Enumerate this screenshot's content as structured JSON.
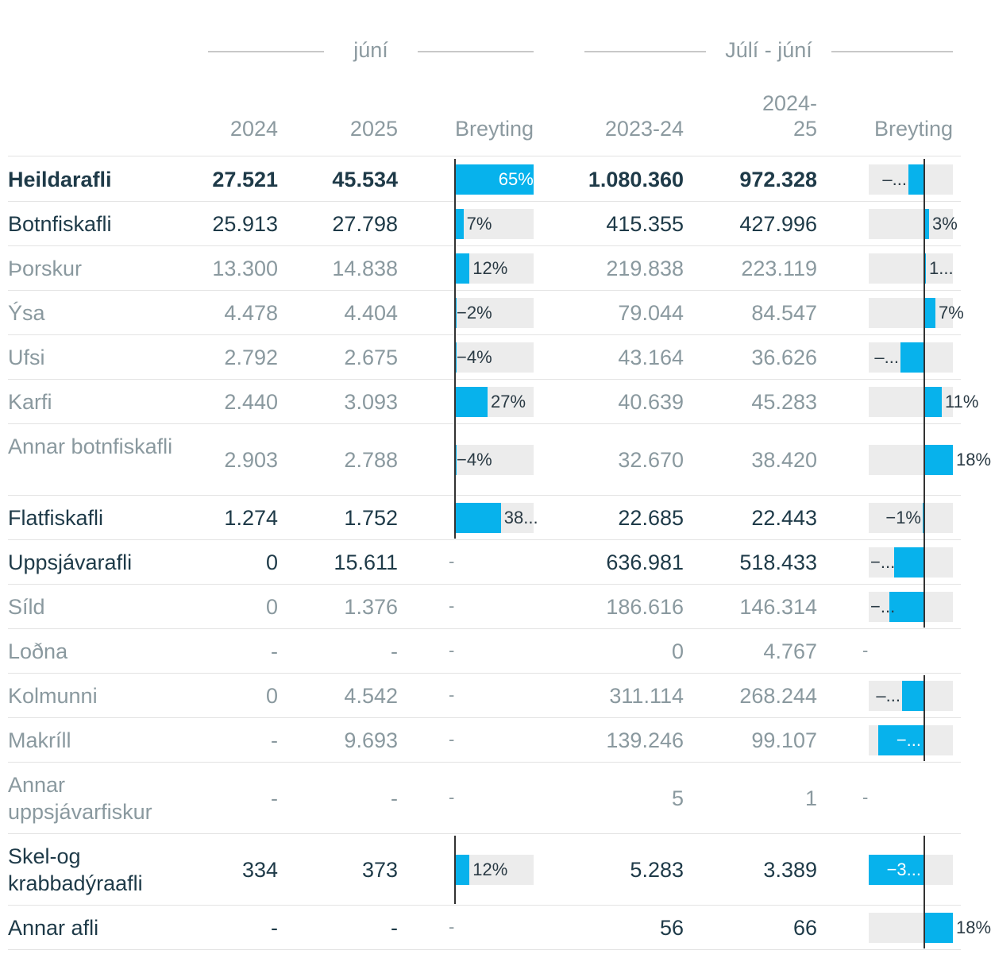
{
  "chart_data": {
    "type": "table",
    "groups": [
      {
        "label": "júní",
        "columns": [
          "2024",
          "2025",
          "Breyting"
        ]
      },
      {
        "label": "Júlí - júní",
        "columns": [
          "2023-24",
          "2024-25",
          "Breyting"
        ]
      }
    ],
    "headers": [
      "",
      "2024",
      "2025",
      "Breyting",
      "2023-24",
      "2024-25",
      "Breyting"
    ],
    "rows": [
      {
        "name": "Heildarafli",
        "level": 0,
        "jun2024": "27.521",
        "jun2025": "45.534",
        "jun_change": 65,
        "jun_label": "65%",
        "yr2324": "1.080.360",
        "yr2425": "972.328",
        "yr_change": -10,
        "yr_label": "–..."
      },
      {
        "name": "Botnfiskafli",
        "level": 1,
        "jun2024": "25.913",
        "jun2025": "27.798",
        "jun_change": 7,
        "jun_label": "7%",
        "yr2324": "415.355",
        "yr2425": "427.996",
        "yr_change": 3,
        "yr_label": "3%"
      },
      {
        "name": "Þorskur",
        "level": 2,
        "jun2024": "13.300",
        "jun2025": "14.838",
        "jun_change": 12,
        "jun_label": "12%",
        "yr2324": "219.838",
        "yr2425": "223.119",
        "yr_change": 1,
        "yr_label": "1..."
      },
      {
        "name": "Ýsa",
        "level": 2,
        "jun2024": "4.478",
        "jun2025": "4.404",
        "jun_change": -2,
        "jun_label": "−2%",
        "yr2324": "79.044",
        "yr2425": "84.547",
        "yr_change": 7,
        "yr_label": "7%"
      },
      {
        "name": "Ufsi",
        "level": 2,
        "jun2024": "2.792",
        "jun2025": "2.675",
        "jun_change": -4,
        "jun_label": "−4%",
        "yr2324": "43.164",
        "yr2425": "36.626",
        "yr_change": -15,
        "yr_label": "–..."
      },
      {
        "name": "Karfi",
        "level": 2,
        "jun2024": "2.440",
        "jun2025": "3.093",
        "jun_change": 27,
        "jun_label": "27%",
        "yr2324": "40.639",
        "yr2425": "45.283",
        "yr_change": 11,
        "yr_label": "11%"
      },
      {
        "name": "Annar botnfiskafli",
        "level": 2,
        "jun2024": "2.903",
        "jun2025": "2.788",
        "jun_change": -4,
        "jun_label": "−4%",
        "yr2324": "32.670",
        "yr2425": "38.420",
        "yr_change": 18,
        "yr_label": "18%"
      },
      {
        "name": "Flatfiskafli",
        "level": 1,
        "jun2024": "1.274",
        "jun2025": "1.752",
        "jun_change": 38,
        "jun_label": "38...",
        "yr2324": "22.685",
        "yr2425": "22.443",
        "yr_change": -1,
        "yr_label": "−1%"
      },
      {
        "name": "Uppsjávarafli",
        "level": 1,
        "jun2024": "0",
        "jun2025": "15.611",
        "jun_change": null,
        "jun_label": "-",
        "yr2324": "636.981",
        "yr2425": "518.433",
        "yr_change": -19,
        "yr_label": "−..."
      },
      {
        "name": "Síld",
        "level": 2,
        "jun2024": "0",
        "jun2025": "1.376",
        "jun_change": null,
        "jun_label": "-",
        "yr2324": "186.616",
        "yr2425": "146.314",
        "yr_change": -22,
        "yr_label": "−..."
      },
      {
        "name": "Loðna",
        "level": 2,
        "jun2024": "-",
        "jun2025": "-",
        "jun_change": null,
        "jun_label": "-",
        "yr2324": "0",
        "yr2425": "4.767",
        "yr_change": null,
        "yr_label": "-"
      },
      {
        "name": "Kolmunni",
        "level": 2,
        "jun2024": "0",
        "jun2025": "4.542",
        "jun_change": null,
        "jun_label": "-",
        "yr2324": "311.114",
        "yr2425": "268.244",
        "yr_change": -14,
        "yr_label": "–..."
      },
      {
        "name": "Makríll",
        "level": 2,
        "jun2024": "-",
        "jun2025": "9.693",
        "jun_change": null,
        "jun_label": "-",
        "yr2324": "139.246",
        "yr2425": "99.107",
        "yr_change": -29,
        "yr_label": "−..."
      },
      {
        "name": "Annar uppsjávarfiskur",
        "level": 2,
        "jun2024": "-",
        "jun2025": "-",
        "jun_change": null,
        "jun_label": "-",
        "yr2324": "5",
        "yr2425": "1",
        "yr_change": null,
        "yr_label": "-"
      },
      {
        "name": "Skel-og krabbadýraafli",
        "level": 1,
        "jun2024": "334",
        "jun2025": "373",
        "jun_change": 12,
        "jun_label": "12%",
        "yr2324": "5.283",
        "yr2425": "3.389",
        "yr_change": -36,
        "yr_label": "−3..."
      },
      {
        "name": "Annar afli",
        "level": 1,
        "jun2024": "-",
        "jun2025": "-",
        "jun_change": null,
        "jun_label": "-",
        "yr2324": "56",
        "yr2425": "66",
        "yr_change": 18,
        "yr_label": "18%"
      }
    ]
  },
  "colors": {
    "bar": "#07b2ec",
    "track": "#ececec",
    "axis": "#333333",
    "text_dark": "#1e3a48",
    "text_muted": "#8a999f",
    "header": "#8c9aa0"
  }
}
